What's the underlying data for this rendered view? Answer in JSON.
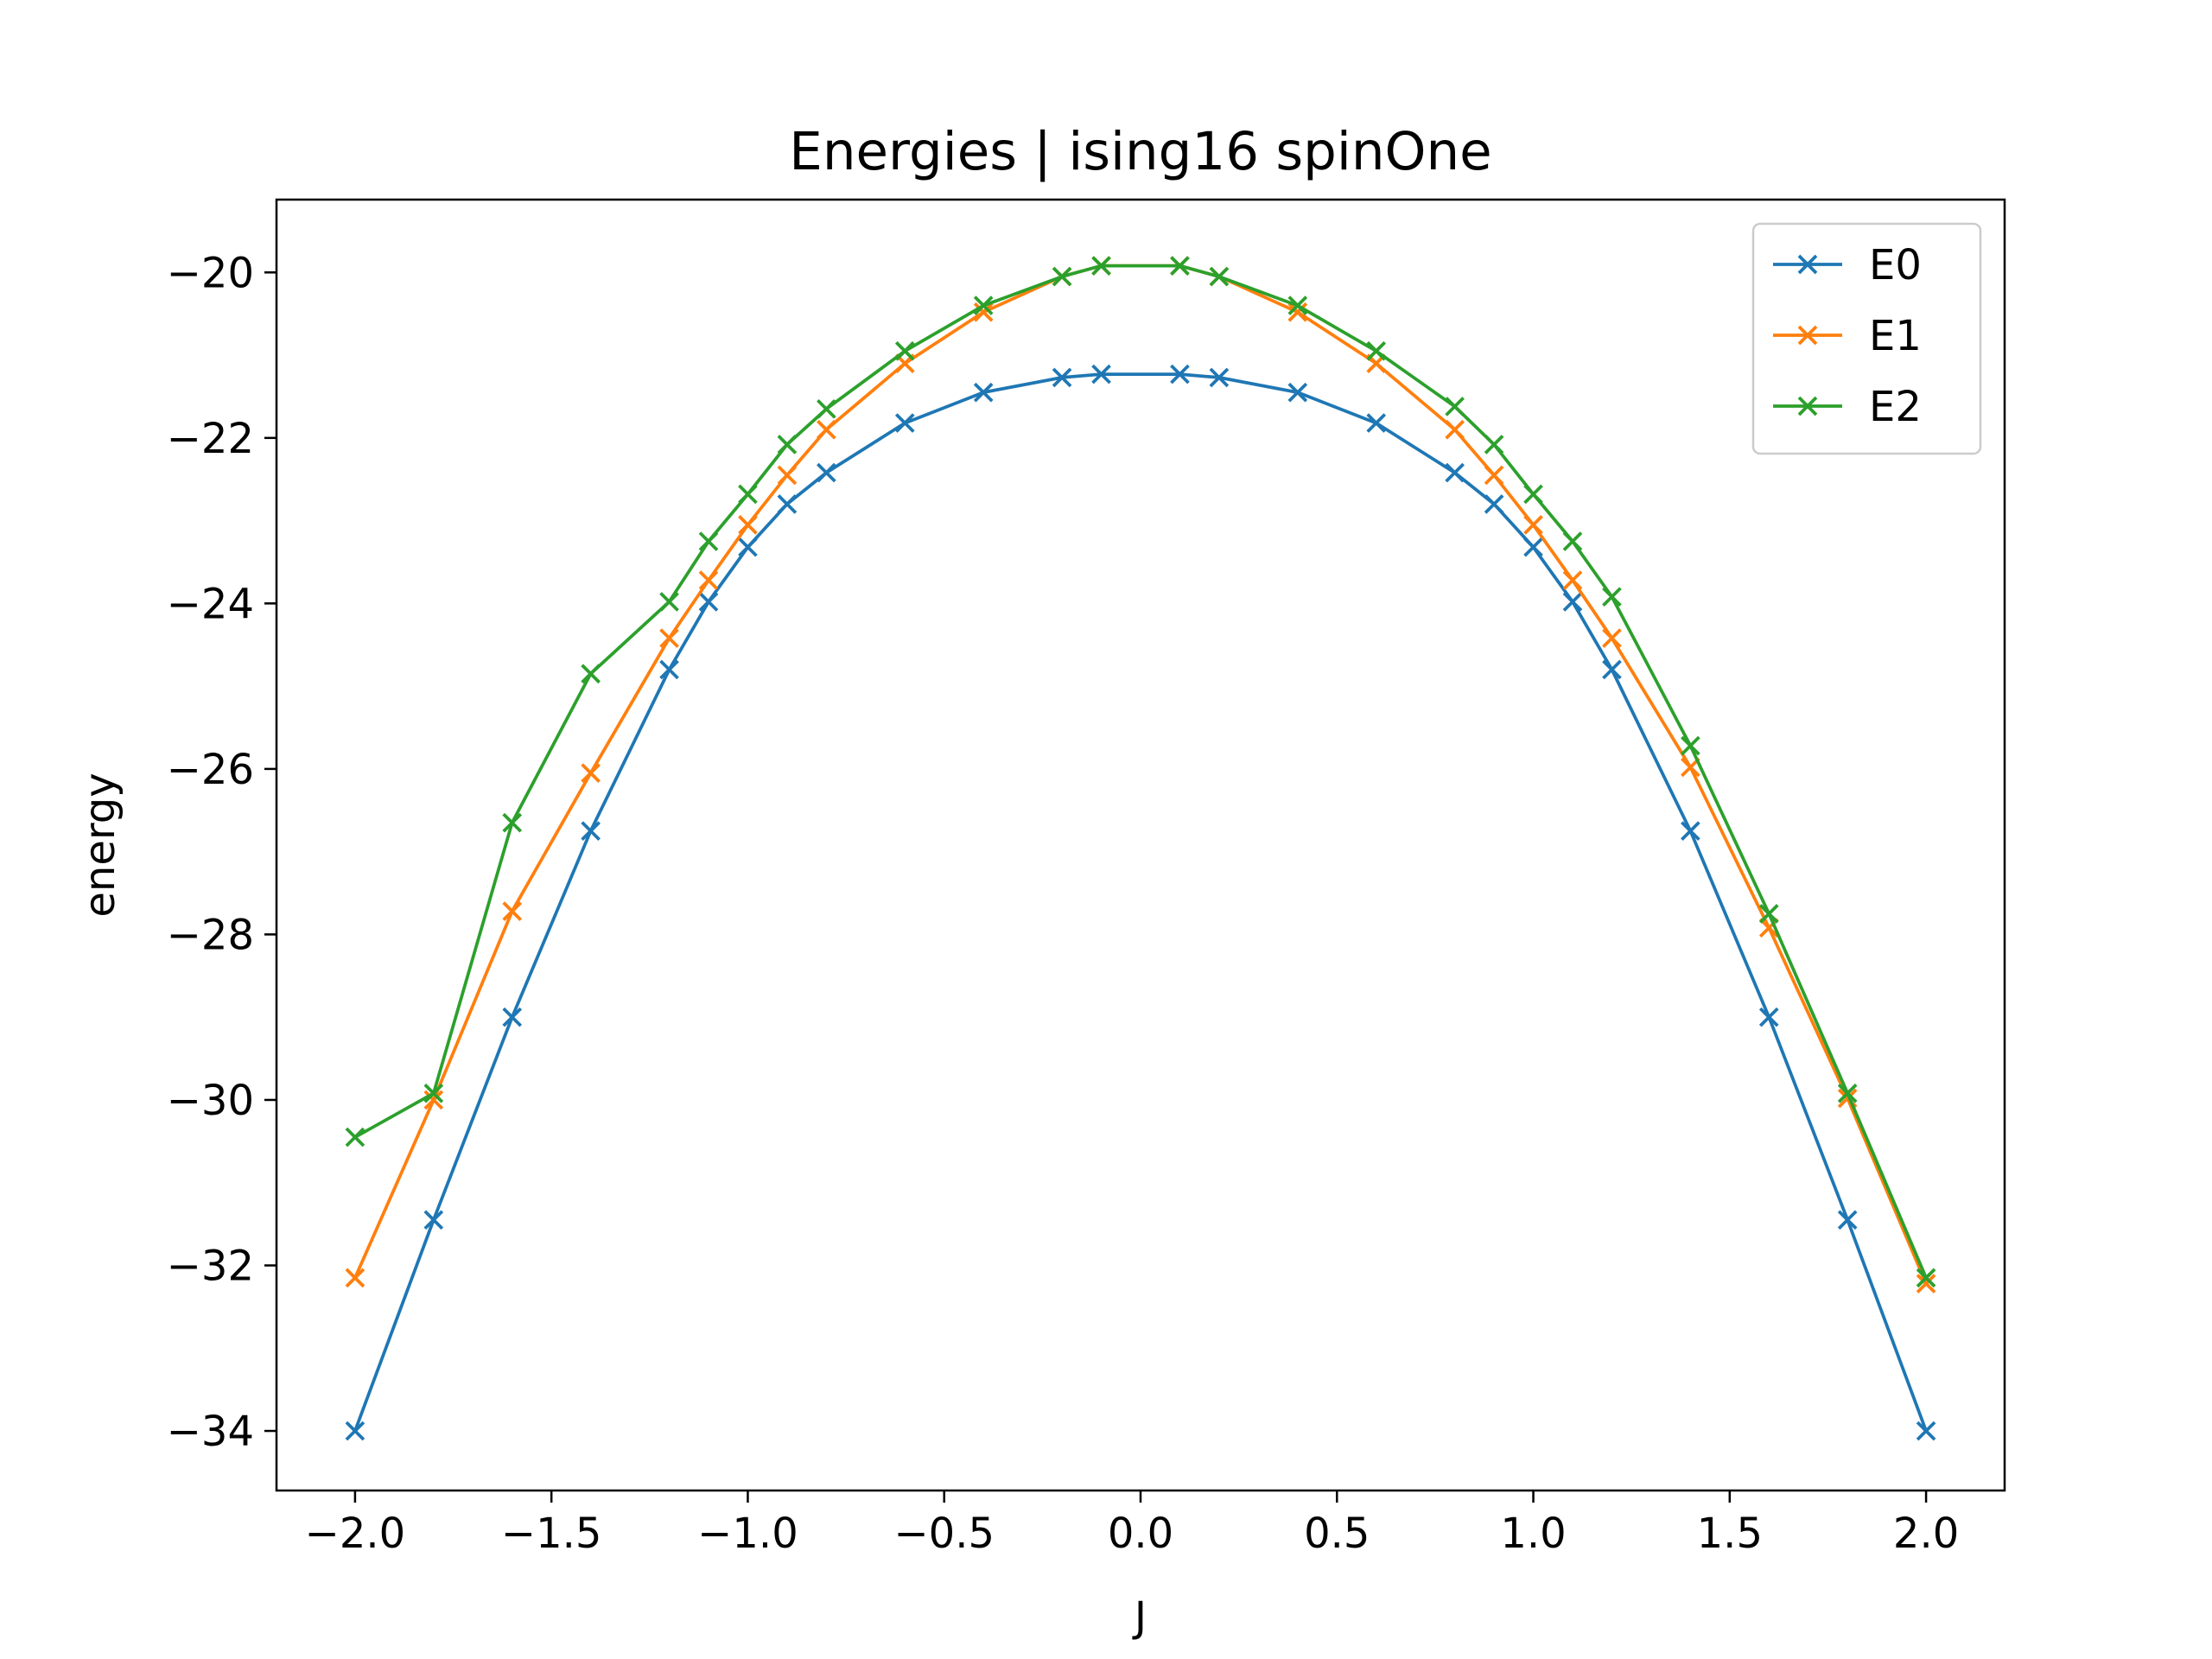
{
  "chart_data": {
    "type": "line",
    "title": "Energies | ising16 spinOne",
    "xlabel": "J",
    "ylabel": "energy",
    "xlim": [
      -2.2,
      2.2
    ],
    "ylim": [
      -34.72,
      -19.12
    ],
    "xticks": [
      -2.0,
      -1.5,
      -1.0,
      -0.5,
      0.0,
      0.5,
      1.0,
      1.5,
      2.0
    ],
    "xtick_labels": [
      "−2.0",
      "−1.5",
      "−1.0",
      "−0.5",
      "0.0",
      "0.5",
      "1.0",
      "1.5",
      "2.0"
    ],
    "yticks": [
      -34,
      -32,
      -30,
      -28,
      -26,
      -24,
      -22,
      -20
    ],
    "ytick_labels": [
      "−34",
      "−32",
      "−30",
      "−28",
      "−26",
      "−24",
      "−22",
      "−20"
    ],
    "grid": false,
    "legend_position": "top-right",
    "marker": "x",
    "x": [
      -2.0,
      -1.8,
      -1.6,
      -1.4,
      -1.2,
      -1.1,
      -1.0,
      -0.9,
      -0.8,
      -0.6,
      -0.4,
      -0.2,
      -0.1,
      0.1,
      0.2,
      0.4,
      0.6,
      0.8,
      0.9,
      1.0,
      1.1,
      1.2,
      1.4,
      1.6,
      1.8,
      2.0
    ],
    "series": [
      {
        "name": "E0",
        "color": "#1f77b4",
        "values": [
          -34.0,
          -31.45,
          -29.0,
          -26.75,
          -24.8,
          -23.98,
          -23.32,
          -22.8,
          -22.42,
          -21.82,
          -21.45,
          -21.27,
          -21.23,
          -21.23,
          -21.27,
          -21.45,
          -21.82,
          -22.42,
          -22.8,
          -23.32,
          -23.98,
          -24.8,
          -26.75,
          -29.0,
          -31.45,
          -34.0
        ]
      },
      {
        "name": "E1",
        "color": "#ff7f0e",
        "values": [
          -32.15,
          -30.0,
          -27.72,
          -26.05,
          -24.42,
          -23.72,
          -23.05,
          -22.45,
          -21.9,
          -21.1,
          -20.48,
          -20.05,
          -19.92,
          -19.92,
          -20.05,
          -20.48,
          -21.1,
          -21.9,
          -22.45,
          -23.05,
          -23.72,
          -24.42,
          -25.98,
          -27.92,
          -29.98,
          -32.22
        ]
      },
      {
        "name": "E2",
        "color": "#2ca02c",
        "values": [
          -30.45,
          -29.92,
          -26.65,
          -24.85,
          -23.98,
          -23.25,
          -22.68,
          -22.08,
          -21.65,
          -20.95,
          -20.4,
          -20.05,
          -19.92,
          -19.92,
          -20.05,
          -20.4,
          -20.95,
          -21.62,
          -22.08,
          -22.68,
          -23.25,
          -23.92,
          -25.72,
          -27.75,
          -29.92,
          -32.15
        ]
      }
    ]
  }
}
